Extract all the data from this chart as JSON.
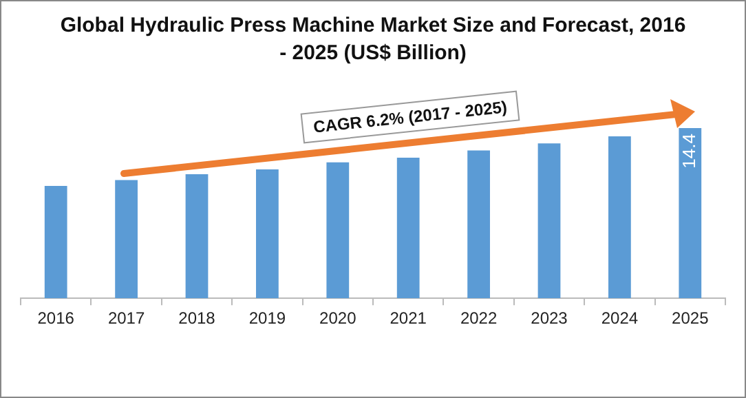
{
  "chart_data": {
    "type": "bar",
    "title": "Global Hydraulic Press Machine Market Size and Forecast, 2016 - 2025 (US$ Billion)",
    "categories": [
      "2016",
      "2017",
      "2018",
      "2019",
      "2020",
      "2021",
      "2022",
      "2023",
      "2024",
      "2025"
    ],
    "values": [
      9.5,
      10.0,
      10.5,
      10.9,
      11.5,
      11.9,
      12.5,
      13.1,
      13.7,
      14.4
    ],
    "value_labels": [
      null,
      null,
      null,
      null,
      null,
      null,
      null,
      null,
      null,
      "14.4"
    ],
    "color": "#5b9bd5",
    "tick_labels": "x",
    "grid": false,
    "legend": false,
    "annotations": [
      "CAGR 6.2% (2017 - 2025)"
    ]
  }
}
